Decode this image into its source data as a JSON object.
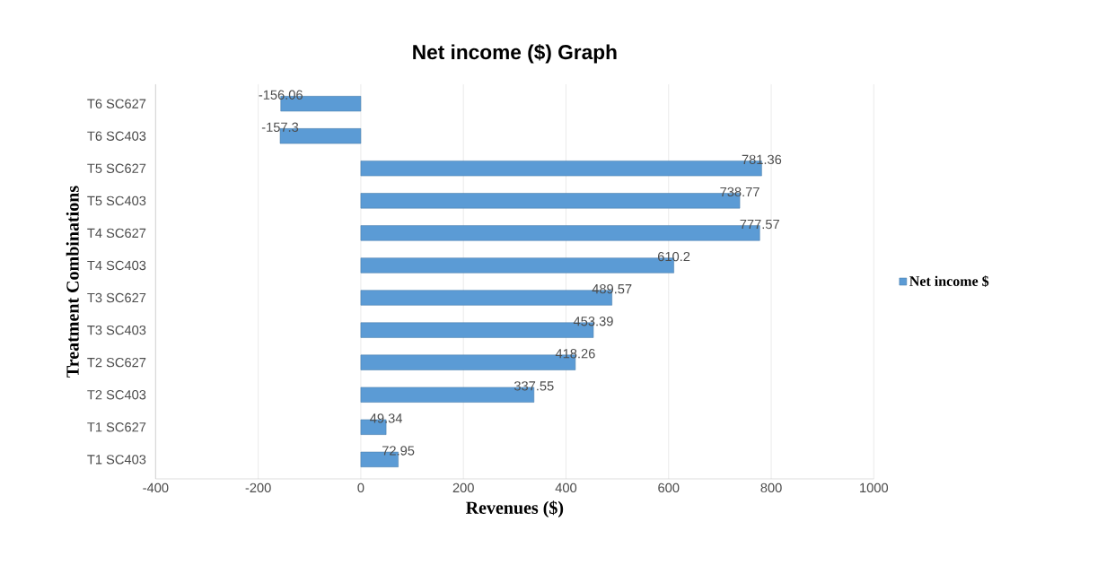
{
  "chart_data": {
    "type": "bar",
    "orientation": "horizontal",
    "title": "Net income ($) Graph",
    "xlabel": "Revenues ($)",
    "ylabel": "Treatment Combinations",
    "categories": [
      "T6 SC627",
      "T6 SC403",
      "T5 SC627",
      "T5 SC403",
      "T4 SC627",
      "T4 SC403",
      "T3 SC627",
      "T3 SC403",
      "T2 SC627",
      "T2 SC403",
      "T1 SC627",
      "T1 SC403"
    ],
    "series": [
      {
        "name": "Net income $",
        "color": "#5b9bd5",
        "values": [
          -156.06,
          -157.3,
          781.36,
          738.77,
          777.57,
          610.2,
          489.57,
          453.39,
          418.26,
          337.55,
          49.34,
          72.95
        ]
      }
    ],
    "data_labels": true,
    "xlim": [
      -400,
      1000
    ],
    "xticks": [
      -400,
      -200,
      0,
      200,
      400,
      600,
      800,
      1000
    ],
    "grid": "x",
    "legend": "right"
  }
}
